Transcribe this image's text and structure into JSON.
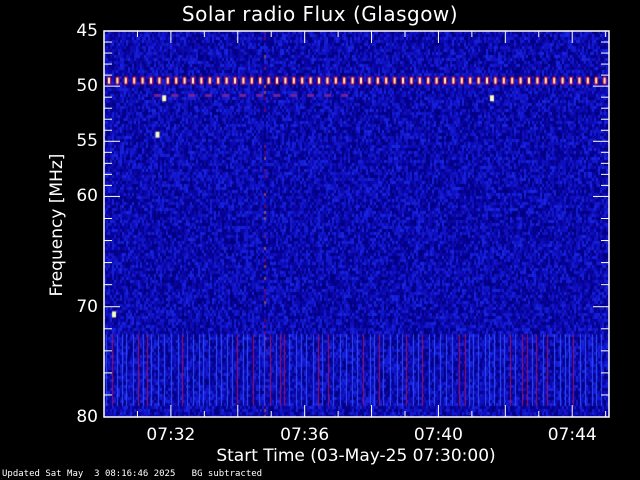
{
  "chart_data": {
    "type": "heatmap",
    "title": "Solar radio Flux (Glasgow)",
    "xlabel": "Start Time (03-May-25 07:30:00)",
    "ylabel": "Frequency [MHz]",
    "x_ticks": [
      "07:32",
      "07:36",
      "07:40",
      "07:44"
    ],
    "x_tick_minutes": [
      2,
      6,
      10,
      14
    ],
    "xlim_minutes_after_start": [
      0,
      15.1
    ],
    "y_ticks": [
      45,
      50,
      55,
      60,
      70,
      80
    ],
    "ylim": [
      45,
      80
    ],
    "y_inverted": true,
    "colormap": [
      "#000040",
      "#0010c0",
      "#2040ff",
      "#c00030",
      "#ff8000",
      "#ffffc0"
    ],
    "background_level": "low (blue)",
    "features": [
      {
        "kind": "periodic interference line",
        "frequency_mhz": 49.5,
        "time_minutes": [
          0,
          15.1
        ]
      },
      {
        "kind": "weak dashed line",
        "frequency_mhz": 50.8,
        "time_minutes": [
          1.5,
          7.2
        ]
      },
      {
        "kind": "vertical burst",
        "time_minutes": 4.8,
        "frequency_mhz": [
          45,
          80
        ]
      },
      {
        "kind": "broadband interference band",
        "frequency_mhz": [
          72.5,
          79
        ],
        "time_minutes": [
          0,
          15.1
        ]
      },
      {
        "kind": "spot",
        "time_minutes": 1.6,
        "frequency_mhz": 54.4
      },
      {
        "kind": "spot",
        "time_minutes": 1.8,
        "frequency_mhz": 51.1
      },
      {
        "kind": "spot",
        "time_minutes": 11.6,
        "frequency_mhz": 51.1
      },
      {
        "kind": "spot",
        "time_minutes": 0.3,
        "frequency_mhz": 70.7
      }
    ]
  },
  "footer": {
    "updated": "Updated Sat May  3 08:16:46 2025",
    "note": "BG subtracted"
  }
}
